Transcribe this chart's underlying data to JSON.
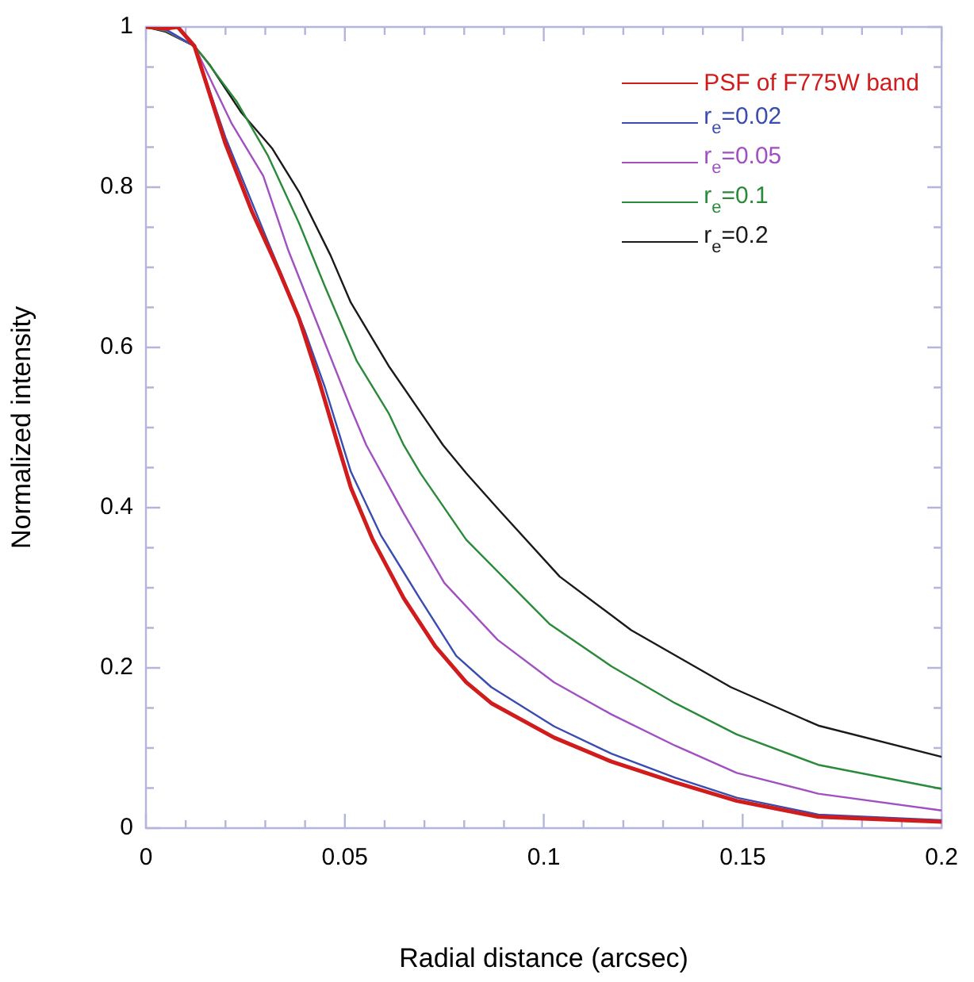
{
  "chart_data": {
    "type": "line",
    "xlabel": "Radial distance (arcsec)",
    "ylabel": "Normalized intensity",
    "xlim": [
      0,
      0.2
    ],
    "ylim": [
      0,
      1
    ],
    "xticks": [
      0,
      {
        "value": 0.01,
        "label": null
      },
      {
        "value": 0.02,
        "label": null
      },
      {
        "value": 0.03,
        "label": null
      },
      {
        "value": 0.04,
        "label": null
      },
      0.05,
      {
        "value": 0.06,
        "label": null
      },
      {
        "value": 0.07,
        "label": null
      },
      {
        "value": 0.08,
        "label": null
      },
      {
        "value": 0.09,
        "label": null
      },
      0.1,
      {
        "value": 0.11,
        "label": null
      },
      {
        "value": 0.12,
        "label": null
      },
      {
        "value": 0.13,
        "label": null
      },
      {
        "value": 0.14,
        "label": null
      },
      0.15,
      {
        "value": 0.16,
        "label": null
      },
      {
        "value": 0.17,
        "label": null
      },
      {
        "value": 0.18,
        "label": null
      },
      {
        "value": 0.19,
        "label": null
      },
      0.2
    ],
    "yticks": [
      0,
      {
        "value": 0.05,
        "label": null
      },
      {
        "value": 0.1,
        "label": null
      },
      {
        "value": 0.15,
        "label": null
      },
      0.2,
      {
        "value": 0.25,
        "label": null
      },
      {
        "value": 0.3,
        "label": null
      },
      {
        "value": 0.35,
        "label": null
      },
      0.4,
      {
        "value": 0.45,
        "label": null
      },
      {
        "value": 0.5,
        "label": null
      },
      {
        "value": 0.55,
        "label": null
      },
      0.6,
      {
        "value": 0.65,
        "label": null
      },
      {
        "value": 0.7,
        "label": null
      },
      {
        "value": 0.75,
        "label": null
      },
      0.8,
      {
        "value": 0.85,
        "label": null
      },
      {
        "value": 0.9,
        "label": null
      },
      {
        "value": 0.95,
        "label": null
      },
      1
    ],
    "grid": false,
    "legend": "top right",
    "marker": "none",
    "line_style": "solid",
    "series": [
      {
        "name": "PSF of F775W band",
        "color": "#d01c1c",
        "x": [
          0,
          0.005,
          0.008,
          0.0122,
          0.02,
          0.0267,
          0.0334,
          0.0385,
          0.0436,
          0.0483,
          0.0515,
          0.057,
          0.0648,
          0.0727,
          0.0805,
          0.0868,
          0.1026,
          0.117,
          0.133,
          0.1485,
          0.169,
          0.2
        ],
        "values": [
          1,
          0.998,
          1,
          0.976,
          0.854,
          0.769,
          0.696,
          0.636,
          0.557,
          0.478,
          0.425,
          0.36,
          0.287,
          0.227,
          0.182,
          0.156,
          0.113,
          0.083,
          0.057,
          0.034,
          0.014,
          0.008
        ]
      },
      {
        "name": "r$_{e}$=0.02",
        "color": "#3a4cb0",
        "x": [
          0,
          0.005,
          0.0122,
          0.02,
          0.03,
          0.04,
          0.045,
          0.0515,
          0.059,
          0.0688,
          0.078,
          0.0868,
          0.1026,
          0.117,
          0.133,
          0.1485,
          0.169,
          0.2
        ],
        "values": [
          1,
          0.997,
          0.976,
          0.862,
          0.74,
          0.62,
          0.55,
          0.445,
          0.366,
          0.287,
          0.215,
          0.176,
          0.127,
          0.093,
          0.063,
          0.038,
          0.017,
          0.01
        ]
      },
      {
        "name": "r$_{e}$=0.05",
        "color": "#a050c0",
        "x": [
          0,
          0.005,
          0.0122,
          0.0216,
          0.0295,
          0.0358,
          0.0436,
          0.0515,
          0.0554,
          0.0648,
          0.075,
          0.0884,
          0.1026,
          0.117,
          0.133,
          0.1485,
          0.169,
          0.2
        ],
        "values": [
          1,
          0.996,
          0.976,
          0.879,
          0.814,
          0.721,
          0.623,
          0.524,
          0.478,
          0.393,
          0.306,
          0.235,
          0.182,
          0.142,
          0.103,
          0.069,
          0.043,
          0.022
        ]
      },
      {
        "name": "r$_{e}$=0.1",
        "color": "#2a8a3a",
        "x": [
          0,
          0.005,
          0.0122,
          0.015,
          0.0228,
          0.0306,
          0.0385,
          0.045,
          0.053,
          0.061,
          0.0648,
          0.069,
          0.0805,
          0.1014,
          0.117,
          0.133,
          0.1485,
          0.169,
          0.2
        ],
        "values": [
          1,
          0.995,
          0.976,
          0.959,
          0.907,
          0.84,
          0.755,
          0.676,
          0.583,
          0.518,
          0.478,
          0.443,
          0.36,
          0.255,
          0.202,
          0.156,
          0.117,
          0.079,
          0.049
        ]
      },
      {
        "name": "r$_{e}$=0.2",
        "color": "#1a1a1a",
        "x": [
          0,
          0.005,
          0.0122,
          0.016,
          0.024,
          0.0318,
          0.0385,
          0.0464,
          0.0515,
          0.061,
          0.07,
          0.0747,
          0.0805,
          0.0884,
          0.104,
          0.122,
          0.147,
          0.169,
          0.2
        ],
        "values": [
          1,
          0.994,
          0.976,
          0.953,
          0.893,
          0.848,
          0.794,
          0.715,
          0.656,
          0.577,
          0.512,
          0.478,
          0.443,
          0.399,
          0.314,
          0.247,
          0.176,
          0.128,
          0.089
        ]
      }
    ]
  }
}
